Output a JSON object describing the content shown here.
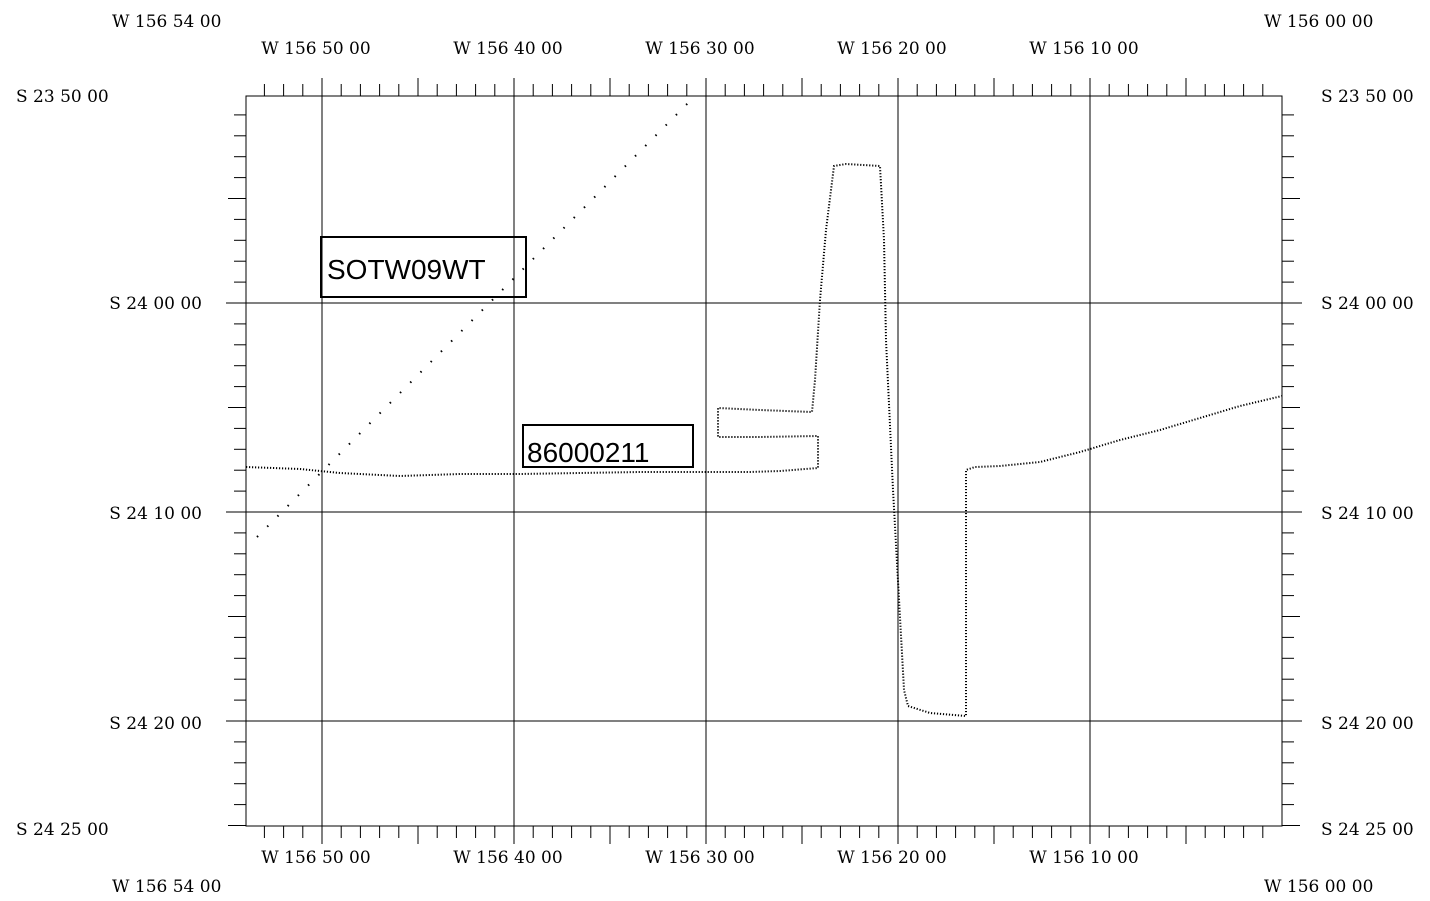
{
  "corners": {
    "top_left": "W 156 54 00",
    "top_right": "W 156 00 00",
    "bottom_left": "W 156 54 00",
    "bottom_right": "W 156 00 00"
  },
  "lat_labels": {
    "top": "S 23 50 00",
    "bottom": "S 24 25 00",
    "grid": [
      "S 24 00 00",
      "S 24 10 00",
      "S 24 20 00"
    ]
  },
  "lon_labels": [
    "W 156 50 00",
    "W 156 40 00",
    "W 156 30 00",
    "W 156 20 00",
    "W 156 10 00"
  ],
  "track_labels": {
    "transect": "SOTW09WT",
    "survey": "86000211"
  },
  "colors": {
    "ink": "#000000",
    "background": "#ffffff"
  }
}
